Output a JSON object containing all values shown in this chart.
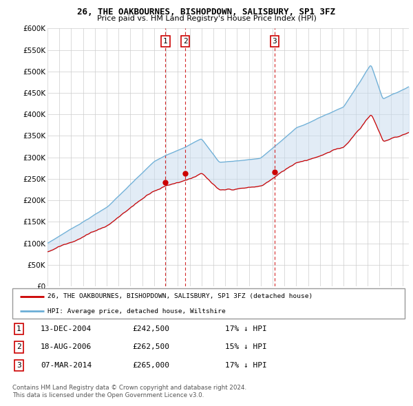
{
  "title": "26, THE OAKBOURNES, BISHOPDOWN, SALISBURY, SP1 3FZ",
  "subtitle": "Price paid vs. HM Land Registry's House Price Index (HPI)",
  "ytick_values": [
    0,
    50000,
    100000,
    150000,
    200000,
    250000,
    300000,
    350000,
    400000,
    450000,
    500000,
    550000,
    600000
  ],
  "sale_year_floats": [
    2004.958,
    2006.633,
    2014.175
  ],
  "sale_prices": [
    242500,
    262500,
    265000
  ],
  "sale_labels": [
    "1",
    "2",
    "3"
  ],
  "legend_line1": "26, THE OAKBOURNES, BISHOPDOWN, SALISBURY, SP1 3FZ (detached house)",
  "legend_line2": "HPI: Average price, detached house, Wiltshire",
  "table_rows": [
    {
      "num": "1",
      "date": "13-DEC-2004",
      "price": "£242,500",
      "pct": "17% ↓ HPI"
    },
    {
      "num": "2",
      "date": "18-AUG-2006",
      "price": "£262,500",
      "pct": "15% ↓ HPI"
    },
    {
      "num": "3",
      "date": "07-MAR-2014",
      "price": "£265,000",
      "pct": "17% ↓ HPI"
    }
  ],
  "footnote1": "Contains HM Land Registry data © Crown copyright and database right 2024.",
  "footnote2": "This data is licensed under the Open Government Licence v3.0.",
  "hpi_color": "#6baed6",
  "hpi_fill_color": "#c6dbef",
  "price_color": "#cc0000",
  "vline_color": "#cc0000",
  "background_color": "#ffffff",
  "grid_color": "#cccccc"
}
